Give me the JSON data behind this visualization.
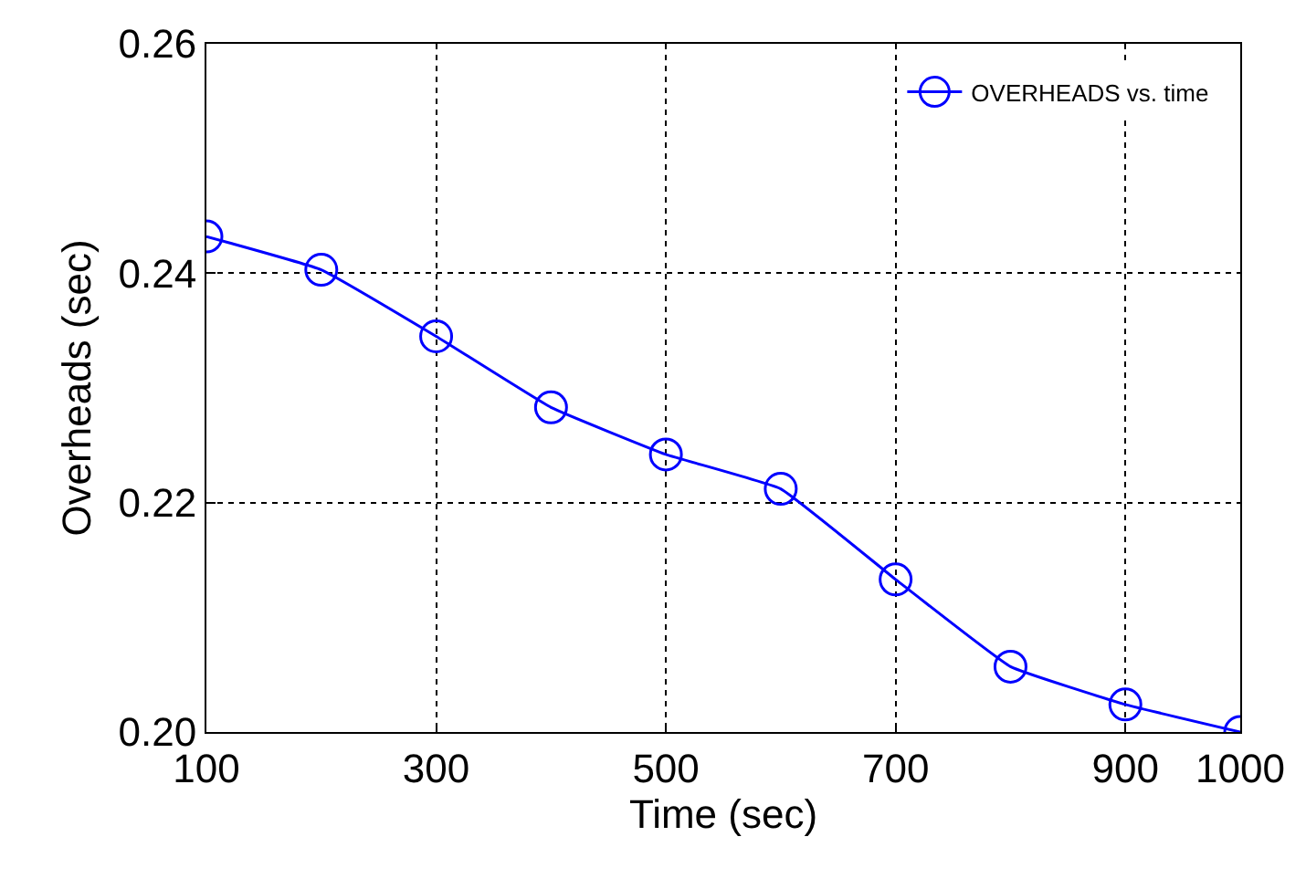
{
  "chart_data": {
    "type": "line",
    "xlabel": "Time (sec)",
    "ylabel": "Overheads (sec)",
    "x": [
      100,
      200,
      300,
      400,
      500,
      600,
      700,
      800,
      900,
      1000
    ],
    "series": [
      {
        "name": "OVERHEADS vs. time",
        "color": "#0000ff",
        "values": [
          0.2432,
          0.2403,
          0.2345,
          0.2283,
          0.2242,
          0.2212,
          0.2133,
          0.2057,
          0.2024,
          0.2
        ]
      }
    ],
    "xlim": [
      100,
      1000
    ],
    "xticks": [
      100,
      300,
      500,
      700,
      900,
      1000
    ],
    "ylim": [
      0.2,
      0.26
    ],
    "yticks": [
      {
        "value": 0.2,
        "label": "0.20"
      },
      {
        "value": 0.22,
        "label": "0.22"
      },
      {
        "value": 0.24,
        "label": "0.24"
      },
      {
        "value": 0.26,
        "label": "0.26"
      }
    ],
    "grid": true,
    "legend": "top right",
    "marker": "circle",
    "line_style": "solid"
  }
}
